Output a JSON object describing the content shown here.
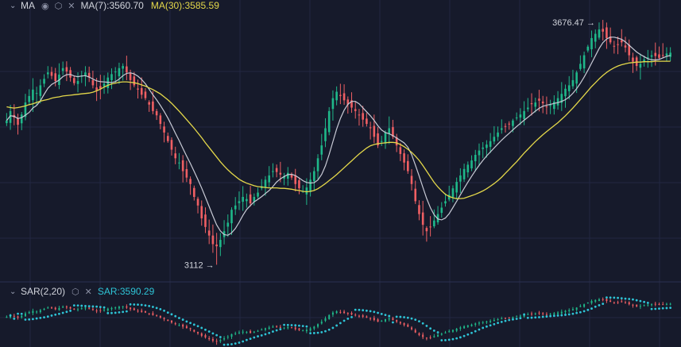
{
  "legend_top": {
    "indicator": "MA",
    "ma7_label": "MA(7):3560.70",
    "ma30_label": "MA(30):3585.59",
    "icons": [
      "eye-icon",
      "settings-icon",
      "close-icon"
    ]
  },
  "legend_bottom": {
    "indicator": "SAR(2,20)",
    "sar_label": "SAR:3590.29",
    "icons": [
      "chevron-down-icon",
      "settings-icon",
      "close-icon"
    ]
  },
  "chart_data": {
    "type": "candlestick",
    "price_pane": {
      "ylim": [
        3085,
        3688
      ],
      "high_marker": {
        "label": "3676.47 →",
        "value": 3676.47
      },
      "low_marker": {
        "label": "3112 →",
        "value": 3112
      },
      "series": [
        {
          "name": "MA(7)",
          "value": 3560.7,
          "color": "#c9cbd6"
        },
        {
          "name": "MA(30)",
          "value": 3585.59,
          "color": "#e4d84a"
        }
      ],
      "closes": [
        3448,
        3470,
        3455,
        3438,
        3462,
        3490,
        3505,
        3520,
        3512,
        3530,
        3545,
        3560,
        3552,
        3540,
        3555,
        3570,
        3562,
        3548,
        3535,
        3540,
        3552,
        3560,
        3548,
        3530,
        3518,
        3522,
        3534,
        3548,
        3556,
        3562,
        3570,
        3575,
        3560,
        3542,
        3530,
        3520,
        3508,
        3500,
        3485,
        3470,
        3460,
        3440,
        3420,
        3400,
        3380,
        3360,
        3350,
        3330,
        3315,
        3300,
        3270,
        3250,
        3220,
        3200,
        3180,
        3160,
        3155,
        3170,
        3190,
        3210,
        3240,
        3250,
        3260,
        3270,
        3265,
        3255,
        3270,
        3280,
        3295,
        3310,
        3320,
        3330,
        3328,
        3322,
        3318,
        3326,
        3315,
        3300,
        3290,
        3284,
        3292,
        3310,
        3330,
        3360,
        3390,
        3430,
        3470,
        3500,
        3515,
        3505,
        3495,
        3485,
        3478,
        3470,
        3460,
        3450,
        3440,
        3430,
        3410,
        3390,
        3400,
        3420,
        3430,
        3410,
        3390,
        3370,
        3350,
        3330,
        3300,
        3260,
        3230,
        3205,
        3190,
        3200,
        3215,
        3230,
        3245,
        3260,
        3275,
        3290,
        3305,
        3320,
        3335,
        3345,
        3355,
        3368,
        3378,
        3385,
        3392,
        3400,
        3410,
        3420,
        3430,
        3435,
        3440,
        3448,
        3455,
        3462,
        3470,
        3478,
        3486,
        3490,
        3494,
        3488,
        3480,
        3484,
        3492,
        3500,
        3510,
        3522,
        3530,
        3542,
        3560,
        3580,
        3600,
        3620,
        3640,
        3650,
        3660,
        3655,
        3640,
        3630,
        3620,
        3625,
        3630,
        3618,
        3600,
        3585,
        3575,
        3580,
        3590,
        3595,
        3600,
        3598,
        3594,
        3600,
        3604,
        3606
      ],
      "ma30": [
        3480,
        3478,
        3477,
        3478,
        3480,
        3482,
        3485,
        3487,
        3490,
        3493,
        3495,
        3497,
        3500,
        3502,
        3503,
        3505,
        3506,
        3507,
        3508,
        3509,
        3510,
        3511,
        3512,
        3514,
        3517,
        3521,
        3526,
        3530,
        3533,
        3535,
        3537,
        3538,
        3538,
        3537,
        3536,
        3534,
        3531,
        3528,
        3524,
        3520,
        3515,
        3510,
        3503,
        3496,
        3488,
        3479,
        3470,
        3460,
        3450,
        3440,
        3430,
        3419,
        3408,
        3396,
        3385,
        3374,
        3363,
        3352,
        3342,
        3333,
        3325,
        3318,
        3311,
        3306,
        3302,
        3299,
        3296,
        3294,
        3293,
        3292,
        3291,
        3291,
        3291,
        3290,
        3290,
        3289,
        3288,
        3286,
        3285,
        3283,
        3282,
        3283,
        3285,
        3289,
        3295,
        3301,
        3308,
        3315,
        3322,
        3330,
        3338,
        3346,
        3354,
        3362,
        3370,
        3377,
        3384,
        3389,
        3392,
        3394,
        3395,
        3396,
        3397,
        3397,
        3396,
        3392,
        3387,
        3381,
        3374,
        3365,
        3355,
        3343,
        3330,
        3317,
        3304,
        3293,
        3284,
        3276,
        3271,
        3268,
        3266,
        3266,
        3267,
        3270,
        3273,
        3276,
        3280,
        3284,
        3289,
        3295,
        3301,
        3308,
        3316,
        3325,
        3334,
        3343,
        3352,
        3362,
        3372,
        3381,
        3390,
        3399,
        3407,
        3415,
        3422,
        3429,
        3436,
        3443,
        3451,
        3459,
        3468,
        3477,
        3487,
        3497,
        3507,
        3517,
        3527,
        3536,
        3545,
        3553,
        3560,
        3566,
        3571,
        3575,
        3578,
        3580,
        3582,
        3583,
        3584,
        3584,
        3585,
        3585,
        3585,
        3586,
        3586,
        3586,
        3586,
        3586
      ]
    },
    "sar_pane": {
      "ylim": [
        3085,
        3688
      ],
      "value": 3590.29,
      "color": "#2ec4d6"
    }
  }
}
